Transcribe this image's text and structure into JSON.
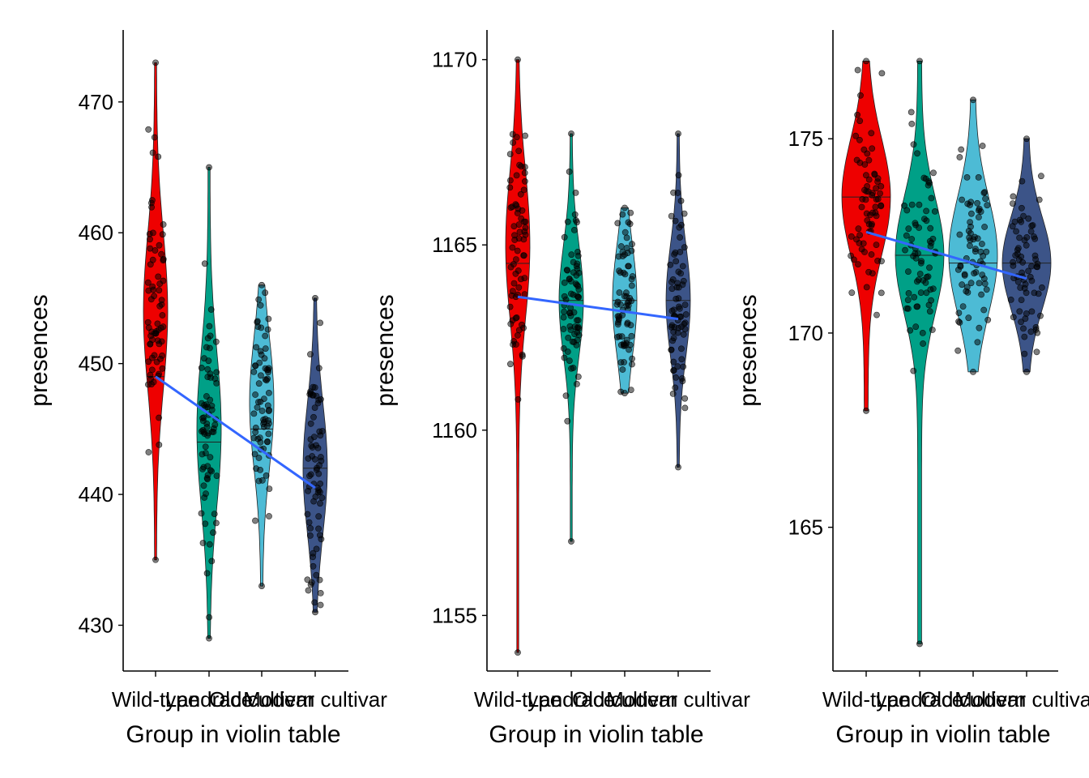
{
  "chart_data": [
    {
      "type": "violin",
      "xlabel": "Group in violin table",
      "ylabel": "presences",
      "categories": [
        "Wild-type",
        "Landrace",
        "Old cultivar",
        "Modern cultivar"
      ],
      "colors": [
        "#EE0000",
        "#00A087",
        "#4DBBD5",
        "#3C5488"
      ],
      "yticks": [
        430,
        440,
        450,
        460,
        470
      ],
      "ylim": [
        426.5,
        475.5
      ],
      "groups": [
        {
          "min": 435,
          "max": 473,
          "median": 449,
          "center": 454,
          "spread": 6
        },
        {
          "min": 429,
          "max": 465,
          "median": 444,
          "center": 445,
          "spread": 6
        },
        {
          "min": 433,
          "max": 456,
          "median": 445,
          "center": 447,
          "spread": 5
        },
        {
          "min": 431,
          "max": 455,
          "median": 442,
          "center": 442,
          "spread": 5
        }
      ],
      "trend": {
        "start": 449.0,
        "end": 440.5
      }
    },
    {
      "type": "violin",
      "xlabel": "Group in violin table",
      "ylabel": "presences",
      "categories": [
        "Wild-type",
        "Landrace",
        "Old cultivar",
        "Modern cultivar"
      ],
      "colors": [
        "#EE0000",
        "#00A087",
        "#4DBBD5",
        "#3C5488"
      ],
      "yticks": [
        1155,
        1160,
        1165,
        1170
      ],
      "ylim": [
        1153.5,
        1170.8
      ],
      "groups": [
        {
          "min": 1154,
          "max": 1170,
          "median": 1164.5,
          "center": 1165,
          "spread": 2
        },
        {
          "min": 1157,
          "max": 1168,
          "median": 1163.5,
          "center": 1163.5,
          "spread": 1.5
        },
        {
          "min": 1161,
          "max": 1166,
          "median": 1163.5,
          "center": 1163.5,
          "spread": 1.5
        },
        {
          "min": 1159,
          "max": 1168,
          "median": 1163.5,
          "center": 1163.5,
          "spread": 1.5
        }
      ],
      "trend": {
        "start": 1163.6,
        "end": 1163.0
      }
    },
    {
      "type": "violin",
      "xlabel": "Group in violin table",
      "ylabel": "presences",
      "categories": [
        "Wild-type",
        "Landrace",
        "Old cultivar",
        "Modern cultivar"
      ],
      "colors": [
        "#EE0000",
        "#00A087",
        "#4DBBD5",
        "#3C5488"
      ],
      "yticks": [
        165,
        170,
        175
      ],
      "ylim": [
        161.3,
        177.8
      ],
      "groups": [
        {
          "min": 168,
          "max": 177,
          "median": 173.5,
          "center": 173.5,
          "spread": 1.5
        },
        {
          "min": 162,
          "max": 177,
          "median": 172,
          "center": 172,
          "spread": 1.5
        },
        {
          "min": 169,
          "max": 176,
          "median": 171.8,
          "center": 172,
          "spread": 1.5
        },
        {
          "min": 169,
          "max": 175,
          "median": 171.8,
          "center": 171.8,
          "spread": 1.2
        }
      ],
      "trend": {
        "start": 172.6,
        "end": 171.4
      }
    }
  ]
}
